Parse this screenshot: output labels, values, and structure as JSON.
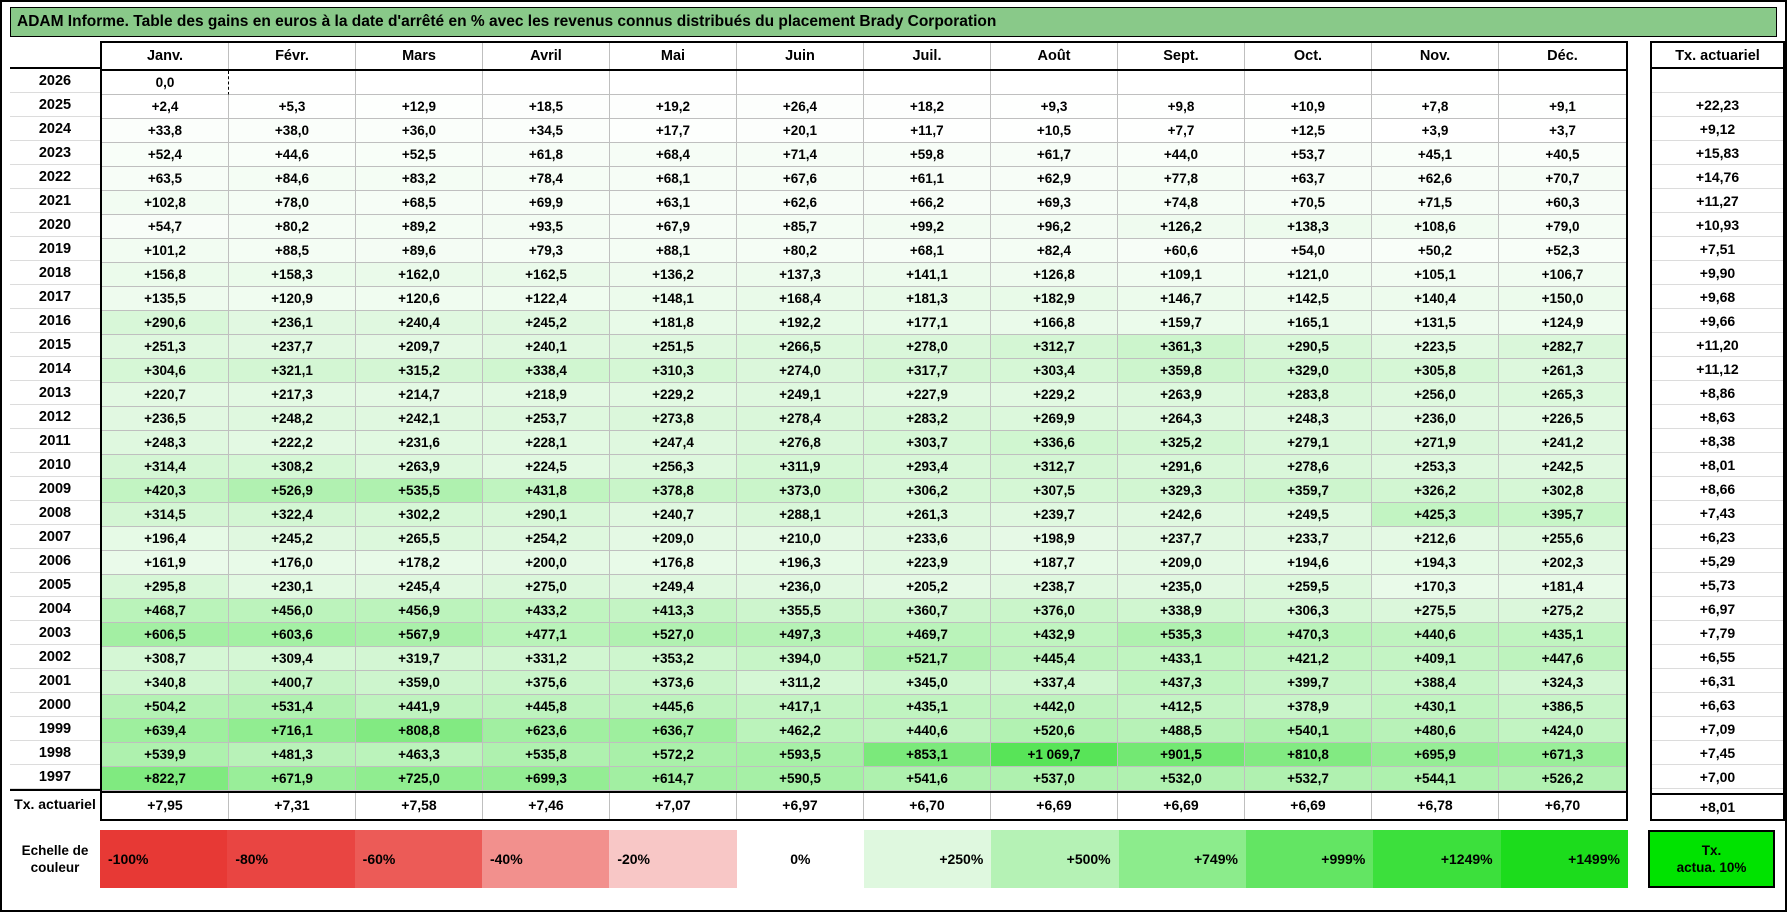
{
  "title": "ADAM Informe. Table des gains en euros à la date d'arrêté en % avec les revenus connus distribués du placement Brady Corporation",
  "months": [
    "Janv.",
    "Févr.",
    "Mars",
    "Avril",
    "Mai",
    "Juin",
    "Juil.",
    "Août",
    "Sept.",
    "Oct.",
    "Nov.",
    "Déc."
  ],
  "tx_header": "Tx. actuariel",
  "rows": [
    {
      "year": "2026",
      "values": [
        "0,0",
        "",
        "",
        "",
        "",
        "",
        "",
        "",
        "",
        "",
        "",
        ""
      ],
      "tx": ""
    },
    {
      "year": "2025",
      "values": [
        "+2,4",
        "+5,3",
        "+12,9",
        "+18,5",
        "+19,2",
        "+26,4",
        "+18,2",
        "+9,3",
        "+9,8",
        "+10,9",
        "+7,8",
        "+9,1"
      ],
      "tx": "+22,23"
    },
    {
      "year": "2024",
      "values": [
        "+33,8",
        "+38,0",
        "+36,0",
        "+34,5",
        "+17,7",
        "+20,1",
        "+11,7",
        "+10,5",
        "+7,7",
        "+12,5",
        "+3,9",
        "+3,7"
      ],
      "tx": "+9,12"
    },
    {
      "year": "2023",
      "values": [
        "+52,4",
        "+44,6",
        "+52,5",
        "+61,8",
        "+68,4",
        "+71,4",
        "+59,8",
        "+61,7",
        "+44,0",
        "+53,7",
        "+45,1",
        "+40,5"
      ],
      "tx": "+15,83"
    },
    {
      "year": "2022",
      "values": [
        "+63,5",
        "+84,6",
        "+83,2",
        "+78,4",
        "+68,1",
        "+67,6",
        "+61,1",
        "+62,9",
        "+77,8",
        "+63,7",
        "+62,6",
        "+70,7"
      ],
      "tx": "+14,76"
    },
    {
      "year": "2021",
      "values": [
        "+102,8",
        "+78,0",
        "+68,5",
        "+69,9",
        "+63,1",
        "+62,6",
        "+66,2",
        "+69,3",
        "+74,8",
        "+70,5",
        "+71,5",
        "+60,3"
      ],
      "tx": "+11,27"
    },
    {
      "year": "2020",
      "values": [
        "+54,7",
        "+80,2",
        "+89,2",
        "+93,5",
        "+67,9",
        "+85,7",
        "+99,2",
        "+96,2",
        "+126,2",
        "+138,3",
        "+108,6",
        "+79,0"
      ],
      "tx": "+10,93"
    },
    {
      "year": "2019",
      "values": [
        "+101,2",
        "+88,5",
        "+89,6",
        "+79,3",
        "+88,1",
        "+80,2",
        "+68,1",
        "+82,4",
        "+60,6",
        "+54,0",
        "+50,2",
        "+52,3"
      ],
      "tx": "+7,51"
    },
    {
      "year": "2018",
      "values": [
        "+156,8",
        "+158,3",
        "+162,0",
        "+162,5",
        "+136,2",
        "+137,3",
        "+141,1",
        "+126,8",
        "+109,1",
        "+121,0",
        "+105,1",
        "+106,7"
      ],
      "tx": "+9,90"
    },
    {
      "year": "2017",
      "values": [
        "+135,5",
        "+120,9",
        "+120,6",
        "+122,4",
        "+148,1",
        "+168,4",
        "+181,3",
        "+182,9",
        "+146,7",
        "+142,5",
        "+140,4",
        "+150,0"
      ],
      "tx": "+9,68"
    },
    {
      "year": "2016",
      "values": [
        "+290,6",
        "+236,1",
        "+240,4",
        "+245,2",
        "+181,8",
        "+192,2",
        "+177,1",
        "+166,8",
        "+159,7",
        "+165,1",
        "+131,5",
        "+124,9"
      ],
      "tx": "+9,66"
    },
    {
      "year": "2015",
      "values": [
        "+251,3",
        "+237,7",
        "+209,7",
        "+240,1",
        "+251,5",
        "+266,5",
        "+278,0",
        "+312,7",
        "+361,3",
        "+290,5",
        "+223,5",
        "+282,7"
      ],
      "tx": "+11,20"
    },
    {
      "year": "2014",
      "values": [
        "+304,6",
        "+321,1",
        "+315,2",
        "+338,4",
        "+310,3",
        "+274,0",
        "+317,7",
        "+303,4",
        "+359,8",
        "+329,0",
        "+305,8",
        "+261,3"
      ],
      "tx": "+11,12"
    },
    {
      "year": "2013",
      "values": [
        "+220,7",
        "+217,3",
        "+214,7",
        "+218,9",
        "+229,2",
        "+249,1",
        "+227,9",
        "+229,2",
        "+263,9",
        "+283,8",
        "+256,0",
        "+265,3"
      ],
      "tx": "+8,86"
    },
    {
      "year": "2012",
      "values": [
        "+236,5",
        "+248,2",
        "+242,1",
        "+253,7",
        "+273,8",
        "+278,4",
        "+283,2",
        "+269,9",
        "+264,3",
        "+248,3",
        "+236,0",
        "+226,5"
      ],
      "tx": "+8,63"
    },
    {
      "year": "2011",
      "values": [
        "+248,3",
        "+222,2",
        "+231,6",
        "+228,1",
        "+247,4",
        "+276,8",
        "+303,7",
        "+336,6",
        "+325,2",
        "+279,1",
        "+271,9",
        "+241,2"
      ],
      "tx": "+8,38"
    },
    {
      "year": "2010",
      "values": [
        "+314,4",
        "+308,2",
        "+263,9",
        "+224,5",
        "+256,3",
        "+311,9",
        "+293,4",
        "+312,7",
        "+291,6",
        "+278,6",
        "+253,3",
        "+242,5"
      ],
      "tx": "+8,01"
    },
    {
      "year": "2009",
      "values": [
        "+420,3",
        "+526,9",
        "+535,5",
        "+431,8",
        "+378,8",
        "+373,0",
        "+306,2",
        "+307,5",
        "+329,3",
        "+359,7",
        "+326,2",
        "+302,8"
      ],
      "tx": "+8,66"
    },
    {
      "year": "2008",
      "values": [
        "+314,5",
        "+322,4",
        "+302,2",
        "+290,1",
        "+240,7",
        "+288,1",
        "+261,3",
        "+239,7",
        "+242,6",
        "+249,5",
        "+425,3",
        "+395,7"
      ],
      "tx": "+7,43"
    },
    {
      "year": "2007",
      "values": [
        "+196,4",
        "+245,2",
        "+265,5",
        "+254,2",
        "+209,0",
        "+210,0",
        "+233,6",
        "+198,9",
        "+237,7",
        "+233,7",
        "+212,6",
        "+255,6"
      ],
      "tx": "+6,23"
    },
    {
      "year": "2006",
      "values": [
        "+161,9",
        "+176,0",
        "+178,2",
        "+200,0",
        "+176,8",
        "+196,3",
        "+223,9",
        "+187,7",
        "+209,0",
        "+194,6",
        "+194,3",
        "+202,3"
      ],
      "tx": "+5,29"
    },
    {
      "year": "2005",
      "values": [
        "+295,8",
        "+230,1",
        "+245,4",
        "+275,0",
        "+249,4",
        "+236,0",
        "+205,2",
        "+238,7",
        "+235,0",
        "+259,5",
        "+170,3",
        "+181,4"
      ],
      "tx": "+5,73"
    },
    {
      "year": "2004",
      "values": [
        "+468,7",
        "+456,0",
        "+456,9",
        "+433,2",
        "+413,3",
        "+355,5",
        "+360,7",
        "+376,0",
        "+338,9",
        "+306,3",
        "+275,5",
        "+275,2"
      ],
      "tx": "+6,97"
    },
    {
      "year": "2003",
      "values": [
        "+606,5",
        "+603,6",
        "+567,9",
        "+477,1",
        "+527,0",
        "+497,3",
        "+469,7",
        "+432,9",
        "+535,3",
        "+470,3",
        "+440,6",
        "+435,1"
      ],
      "tx": "+7,79"
    },
    {
      "year": "2002",
      "values": [
        "+308,7",
        "+309,4",
        "+319,7",
        "+331,2",
        "+353,2",
        "+394,0",
        "+521,7",
        "+445,4",
        "+433,1",
        "+421,2",
        "+409,1",
        "+447,6"
      ],
      "tx": "+6,55"
    },
    {
      "year": "2001",
      "values": [
        "+340,8",
        "+400,7",
        "+359,0",
        "+375,6",
        "+373,6",
        "+311,2",
        "+345,0",
        "+337,4",
        "+437,3",
        "+399,7",
        "+388,4",
        "+324,3"
      ],
      "tx": "+6,31"
    },
    {
      "year": "2000",
      "values": [
        "+504,2",
        "+531,4",
        "+441,9",
        "+445,8",
        "+445,6",
        "+417,1",
        "+435,1",
        "+442,0",
        "+412,5",
        "+378,9",
        "+430,1",
        "+386,5"
      ],
      "tx": "+6,63"
    },
    {
      "year": "1999",
      "values": [
        "+639,4",
        "+716,1",
        "+808,8",
        "+623,6",
        "+636,7",
        "+462,2",
        "+440,6",
        "+520,6",
        "+488,5",
        "+540,1",
        "+480,6",
        "+424,0"
      ],
      "tx": "+7,09"
    },
    {
      "year": "1998",
      "values": [
        "+539,9",
        "+481,3",
        "+463,3",
        "+535,8",
        "+572,2",
        "+593,5",
        "+853,1",
        "+1 069,7",
        "+901,5",
        "+810,8",
        "+695,9",
        "+671,3"
      ],
      "tx": "+7,45"
    },
    {
      "year": "1997",
      "values": [
        "+822,7",
        "+671,9",
        "+725,0",
        "+699,3",
        "+614,7",
        "+590,5",
        "+541,6",
        "+537,0",
        "+532,0",
        "+532,7",
        "+544,1",
        "+526,2"
      ],
      "tx": "+7,00"
    }
  ],
  "footer": {
    "label": "Tx. actuariel",
    "values": [
      "+7,95",
      "+7,31",
      "+7,58",
      "+7,46",
      "+7,07",
      "+6,97",
      "+6,70",
      "+6,69",
      "+6,69",
      "+6,69",
      "+6,78",
      "+6,70"
    ],
    "tx": "+8,01"
  },
  "legend": {
    "label_line1": "Echelle de",
    "label_line2": "couleur",
    "stops": [
      {
        "label": "-100%",
        "value": -100,
        "color": "#E73935",
        "align": "left"
      },
      {
        "label": "-80%",
        "value": -80,
        "color": "#E94542",
        "align": "left"
      },
      {
        "label": "-60%",
        "value": -60,
        "color": "#EC5B57",
        "align": "left"
      },
      {
        "label": "-40%",
        "value": -40,
        "color": "#F2908D",
        "align": "left"
      },
      {
        "label": "-20%",
        "value": -20,
        "color": "#F8C7C6",
        "align": "left"
      },
      {
        "label": "0%",
        "value": 0,
        "color": "#FFFFFF",
        "align": "center"
      },
      {
        "label": "+250%",
        "value": 250,
        "color": "#DFF8DF",
        "align": "right"
      },
      {
        "label": "+500%",
        "value": 500,
        "color": "#B5F2B5",
        "align": "right"
      },
      {
        "label": "+749%",
        "value": 749,
        "color": "#8CEC8C",
        "align": "right"
      },
      {
        "label": "+999%",
        "value": 999,
        "color": "#63E563",
        "align": "right"
      },
      {
        "label": "+1249%",
        "value": 1249,
        "color": "#3CE03C",
        "align": "right"
      },
      {
        "label": "+1499%",
        "value": 1499,
        "color": "#1CDC1C",
        "align": "right"
      }
    ],
    "right_box": {
      "line1": "Tx.",
      "line2": "actua. 10%",
      "color": "#00E300"
    }
  },
  "colors": {
    "title_bg": "#89C989",
    "grid_line": "#BFBFBF",
    "zero_cell": "#FFFFFF"
  }
}
